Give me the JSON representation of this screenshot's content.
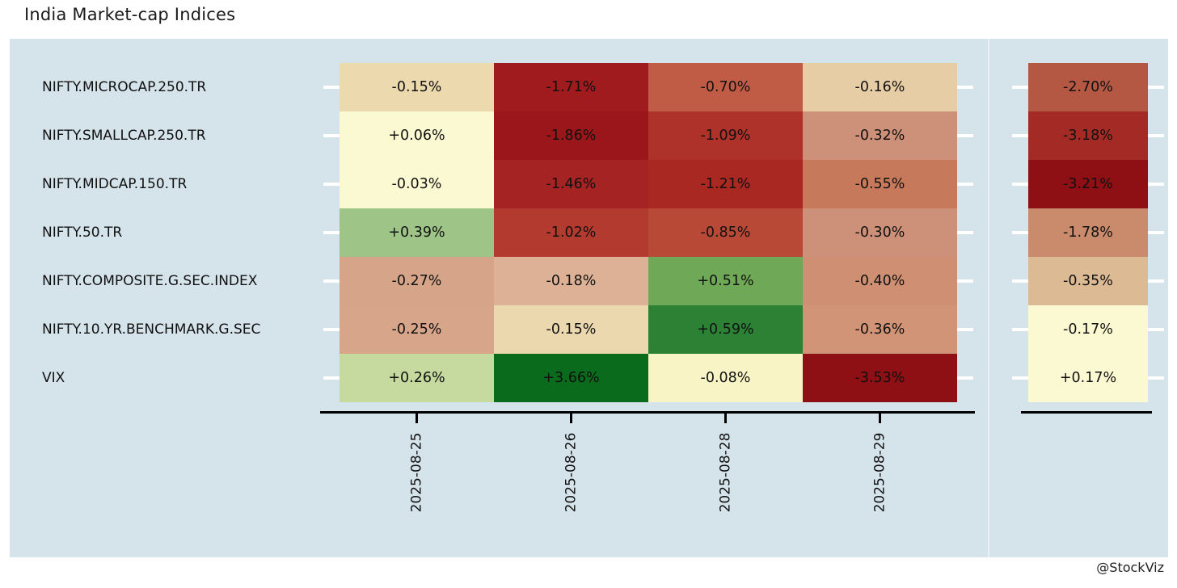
{
  "page": {
    "title": "India Market-cap Indices",
    "watermark": "@StockViz"
  },
  "colors": {
    "page_background": "#ffffff",
    "panel_background": "#d5e3eb",
    "axis_line": "#000000",
    "row_tick": "#ffffff",
    "cell_text": "#111111"
  },
  "chart_data": {
    "type": "heatmap",
    "title": "India Market-cap Indices",
    "rows": [
      "NIFTY.MICROCAP.250.TR",
      "NIFTY.SMALLCAP.250.TR",
      "NIFTY.MIDCAP.150.TR",
      "NIFTY.50.TR",
      "NIFTY.COMPOSITE.G.SEC.INDEX",
      "NIFTY.10.YR.BENCHMARK.G.SEC",
      "VIX"
    ],
    "columns": [
      "2025-08-25",
      "2025-08-26",
      "2025-08-28",
      "2025-08-29"
    ],
    "cell_labels": [
      [
        "-0.15%",
        "-1.71%",
        "-0.70%",
        "-0.16%"
      ],
      [
        "+0.06%",
        "-1.86%",
        "-1.09%",
        "-0.32%"
      ],
      [
        "-0.03%",
        "-1.46%",
        "-1.21%",
        "-0.55%"
      ],
      [
        "+0.39%",
        "-1.02%",
        "-0.85%",
        "-0.30%"
      ],
      [
        "-0.27%",
        "-0.18%",
        "+0.51%",
        "-0.40%"
      ],
      [
        "-0.25%",
        "-0.15%",
        "+0.59%",
        "-0.36%"
      ],
      [
        "+0.26%",
        "+3.66%",
        "-0.08%",
        "-3.53%"
      ]
    ],
    "cell_values": [
      [
        -0.15,
        -1.71,
        -0.7,
        -0.16
      ],
      [
        0.06,
        -1.86,
        -1.09,
        -0.32
      ],
      [
        -0.03,
        -1.46,
        -1.21,
        -0.55
      ],
      [
        0.39,
        -1.02,
        -0.85,
        -0.3
      ],
      [
        -0.27,
        -0.18,
        0.51,
        -0.4
      ],
      [
        -0.25,
        -0.15,
        0.59,
        -0.36
      ],
      [
        0.26,
        3.66,
        -0.08,
        -3.53
      ]
    ],
    "cell_colors": [
      [
        "#ecd9ad",
        "#9f1b1e",
        "#c05c45",
        "#e7cda6"
      ],
      [
        "#fbf9d2",
        "#9b161a",
        "#ae312a",
        "#cd9079"
      ],
      [
        "#fbf9d2",
        "#a52322",
        "#a92822",
        "#c77a5b"
      ],
      [
        "#9ec587",
        "#b23a2e",
        "#b74936",
        "#cd9079"
      ],
      [
        "#d6a488",
        "#ddb195",
        "#6fa957",
        "#cf8f72"
      ],
      [
        "#d7a58a",
        "#ecd8ae",
        "#2d8135",
        "#d29477"
      ],
      [
        "#c6da9f",
        "#0a6b1c",
        "#f9f4c6",
        "#8e0f14"
      ]
    ],
    "summary_labels": [
      "-2.70%",
      "-3.18%",
      "-3.21%",
      "-1.78%",
      "-0.35%",
      "-0.17%",
      "+0.17%"
    ],
    "summary_values": [
      -2.7,
      -3.18,
      -3.21,
      -1.78,
      -0.35,
      -0.17,
      0.17
    ],
    "summary_colors": [
      "#b55843",
      "#a42b25",
      "#8e0f14",
      "#ca8a6c",
      "#dcba94",
      "#fbf9d2",
      "#fbf9d2"
    ],
    "legend": "none",
    "x_tick_rotation_deg": 90
  }
}
